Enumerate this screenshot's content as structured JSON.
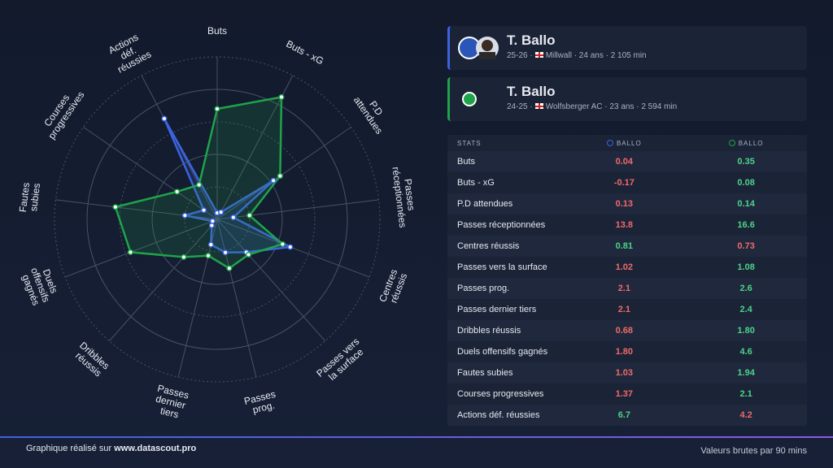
{
  "chart_data": {
    "type": "radar",
    "categories": [
      "Buts",
      "Buts - xG",
      "P.D attendues",
      "Passes réceptionnées",
      "Centres réussis",
      "Passes vers la surface",
      "Passes prog.",
      "Passes dernier tiers",
      "Dribbles réussis",
      "Duels offensifs gagnés",
      "Fautes subies",
      "Courses progressives",
      "Actions déf. réussies"
    ],
    "ylim": [
      0,
      100
    ],
    "series": [
      {
        "name": "T. Ballo 25-26",
        "color": "#3b63e0",
        "values": [
          4,
          5,
          42,
          10,
          48,
          27,
          21,
          16,
          5,
          3,
          20,
          10,
          70
        ]
      },
      {
        "name": "T. Ballo 24-25",
        "color": "#1fa34a",
        "values": [
          68,
          85,
          47,
          20,
          43,
          29,
          31,
          23,
          31,
          57,
          63,
          30,
          24
        ]
      }
    ]
  },
  "players": [
    {
      "name": "T. Ballo",
      "meta_before": "25-26 ·",
      "meta_after": "Millwall · 24 ans · 2 105 min"
    },
    {
      "name": "T. Ballo",
      "meta_before": "24-25 ·",
      "meta_after": "Wolfsberger AC · 23 ans · 2 594 min"
    }
  ],
  "table": {
    "header": [
      "STATS",
      "BALLO",
      "BALLO"
    ],
    "rows": [
      [
        "Buts",
        "0.04",
        "0.35"
      ],
      [
        "Buts - xG",
        "-0.17",
        "0.08"
      ],
      [
        "P.D attendues",
        "0.13",
        "0.14"
      ],
      [
        "Passes réceptionnées",
        "13.8",
        "16.6"
      ],
      [
        "Centres réussis",
        "0.81",
        "0.73"
      ],
      [
        "Passes vers la surface",
        "1.02",
        "1.08"
      ],
      [
        "Passes prog.",
        "2.1",
        "2.6"
      ],
      [
        "Passes dernier tiers",
        "2.1",
        "2.4"
      ],
      [
        "Dribbles réussis",
        "0.68",
        "1.80"
      ],
      [
        "Duels offensifs gagnés",
        "1.80",
        "4.6"
      ],
      [
        "Fautes subies",
        "1.03",
        "1.94"
      ],
      [
        "Courses progressives",
        "1.37",
        "2.1"
      ],
      [
        "Actions déf. réussies",
        "6.7",
        "4.2"
      ]
    ],
    "better": [
      [
        "low",
        "high"
      ],
      [
        "low",
        "high"
      ],
      [
        "low",
        "high"
      ],
      [
        "low",
        "high"
      ],
      [
        "high",
        "low"
      ],
      [
        "low",
        "high"
      ],
      [
        "low",
        "high"
      ],
      [
        "low",
        "high"
      ],
      [
        "low",
        "high"
      ],
      [
        "low",
        "high"
      ],
      [
        "low",
        "high"
      ],
      [
        "low",
        "high"
      ],
      [
        "high",
        "low"
      ]
    ]
  },
  "footer": {
    "left": "Graphique réalisé sur ",
    "link": "www.datascout.pro",
    "right": "Valeurs brutes par 90 mins"
  }
}
